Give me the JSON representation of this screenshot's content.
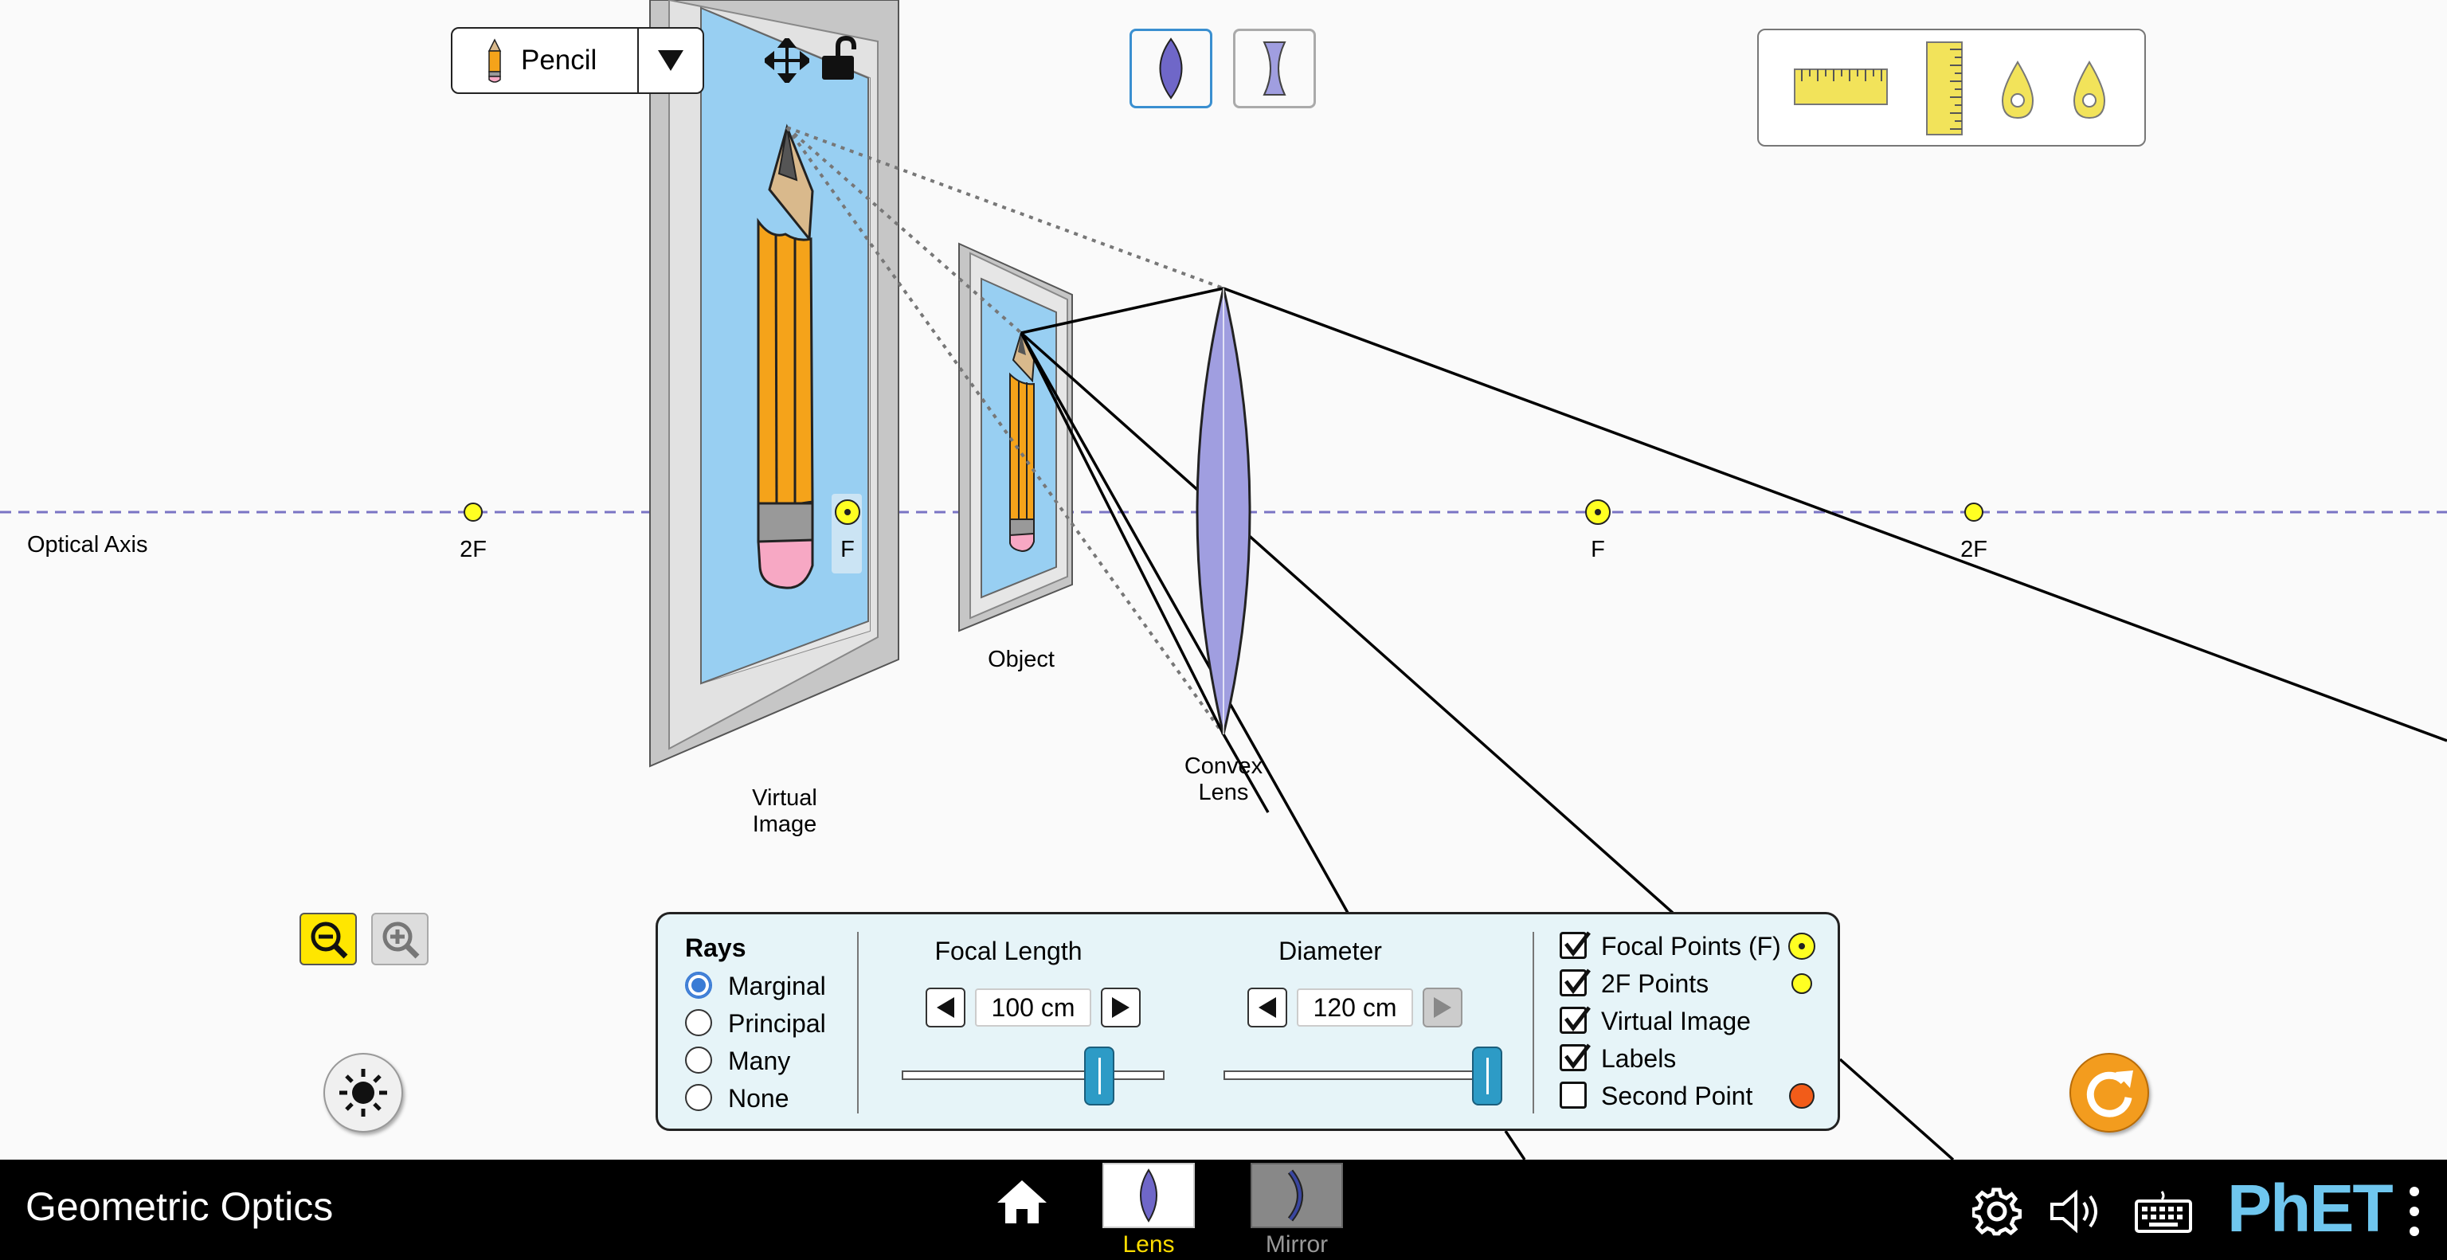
{
  "object_selector": {
    "label": "Pencil"
  },
  "scene_labels": {
    "optical_axis": "Optical Axis",
    "left_2f": "2F",
    "left_f": "F",
    "right_f": "F",
    "right_2f": "2F",
    "object": "Object",
    "virtual_image": "Virtual\nImage",
    "lens": "Convex\nLens"
  },
  "controls": {
    "rays_title": "Rays",
    "rays_options": [
      "Marginal",
      "Principal",
      "Many",
      "None"
    ],
    "rays_selected": "Marginal",
    "focal_length_title": "Focal Length",
    "focal_length_value": "100 cm",
    "diameter_title": "Diameter",
    "diameter_value": "120 cm",
    "checkboxes": [
      {
        "label": "Focal Points (F)",
        "checked": true
      },
      {
        "label": "2F Points",
        "checked": true
      },
      {
        "label": "Virtual Image",
        "checked": true
      },
      {
        "label": "Labels",
        "checked": true
      },
      {
        "label": "Second Point",
        "checked": false
      }
    ]
  },
  "navbar": {
    "title": "Geometric Optics",
    "tabs": [
      {
        "label": "Lens",
        "selected": true
      },
      {
        "label": "Mirror",
        "selected": false
      }
    ],
    "brand": "PhET"
  },
  "colors": {
    "lens_fill": "#a09ee0",
    "axis": "#7a74c4",
    "focal_point": "#ffff22",
    "panel_bg": "#e6f4f8",
    "slider_thumb": "#2d9bc6",
    "selected_tab": "#ffdd00",
    "reset": "#f39c1e",
    "second_point": "#f25c19"
  }
}
